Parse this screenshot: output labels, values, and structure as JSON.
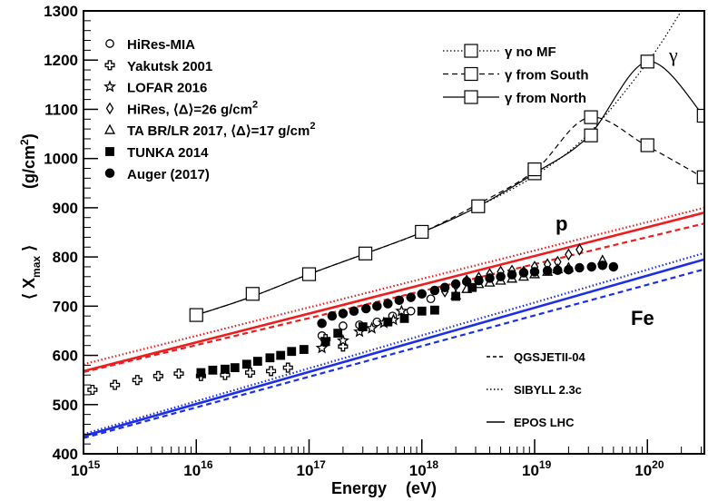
{
  "chart_data": {
    "type": "scatter",
    "xlabel": "Energy",
    "xunit": "(eV)",
    "ylabel_main": "⟨ X",
    "ylabel_sub": "max",
    "ylabel_close": " ⟩",
    "ylabel_unit": "(g/cm",
    "ylabel_unit_sup": "2",
    "ylabel_unit_close": ")",
    "xscale": "log",
    "xlim": [
      1000000000000000.0,
      3.2e+20
    ],
    "ylim": [
      400,
      1300
    ],
    "xticks": [
      {
        "value": 1000000000000000.0,
        "label": "10",
        "exp": "15"
      },
      {
        "value": 1e+16,
        "label": "10",
        "exp": "16"
      },
      {
        "value": 1e+17,
        "label": "10",
        "exp": "17"
      },
      {
        "value": 1e+18,
        "label": "10",
        "exp": "18"
      },
      {
        "value": 1e+19,
        "label": "10",
        "exp": "19"
      },
      {
        "value": 1e+20,
        "label": "10",
        "exp": "20"
      }
    ],
    "yticks": [
      400,
      500,
      600,
      700,
      800,
      900,
      1000,
      1100,
      1200,
      1300
    ],
    "region_labels": {
      "proton": "p",
      "iron": "Fe",
      "gamma": "γ"
    },
    "legend_data": [
      {
        "marker": "open-circle",
        "label": "HiRes-MIA"
      },
      {
        "marker": "open-cross",
        "label": "Yakutsk 2001"
      },
      {
        "marker": "open-star",
        "label": "LOFAR 2016"
      },
      {
        "marker": "open-diamond",
        "label": "HiRes, ⟨Δ⟩=26 g/cm",
        "sup": "2"
      },
      {
        "marker": "open-triangle",
        "label": "TA BR/LR 2017, ⟨Δ⟩=17 g/cm",
        "sup": "2"
      },
      {
        "marker": "filled-square",
        "label": "TUNKA 2014"
      },
      {
        "marker": "filled-circle",
        "label": "Auger (2017)"
      }
    ],
    "legend_gamma": [
      {
        "dash": "dotted",
        "label": "γ no MF"
      },
      {
        "dash": "dashed",
        "label": "γ from South"
      },
      {
        "dash": "solid",
        "label": "γ from North"
      }
    ],
    "legend_models": [
      {
        "dash": "dashed",
        "label": "QGSJETII-04"
      },
      {
        "dash": "dotted",
        "label": "SIBYLL 2.3c"
      },
      {
        "dash": "solid",
        "label": "EPOS LHC"
      }
    ],
    "colors": {
      "proton": "#ee1c1c",
      "iron": "#1c2ee8",
      "gamma": "#000000",
      "data": "#000000"
    },
    "series": [
      {
        "name": "HiRes-MIA",
        "marker": "open-circle",
        "points": [
          [
            1.3e+17,
            640
          ],
          [
            2e+17,
            660
          ],
          [
            2.8e+17,
            662
          ],
          [
            4e+17,
            668
          ],
          [
            5.5e+17,
            680
          ],
          [
            8e+17,
            690
          ],
          [
            1.2e+18,
            715
          ]
        ]
      },
      {
        "name": "Yakutsk 2001",
        "marker": "open-cross",
        "points": [
          [
            1200000000000000.0,
            530
          ],
          [
            1900000000000000.0,
            540
          ],
          [
            3000000000000000.0,
            550
          ],
          [
            4600000000000000.0,
            558
          ],
          [
            7000000000000000.0,
            563
          ],
          [
            1.1e+16,
            558
          ],
          [
            1.8e+16,
            560
          ],
          [
            3e+16,
            565
          ],
          [
            4.6e+16,
            568
          ],
          [
            6.5e+16,
            575
          ],
          [
            1.4e+17,
            633
          ],
          [
            2e+17,
            618
          ]
        ]
      },
      {
        "name": "LOFAR 2016",
        "marker": "open-star",
        "points": [
          [
            1.3e+17,
            615
          ],
          [
            2e+17,
            630
          ],
          [
            2.8e+17,
            648
          ],
          [
            3.6e+17,
            655
          ],
          [
            4.6e+17,
            666
          ],
          [
            5.6e+17,
            672
          ],
          [
            6.6e+17,
            690
          ]
        ]
      },
      {
        "name": "HiRes",
        "marker": "open-diamond",
        "points": [
          [
            1.6e+18,
            730
          ],
          [
            2e+18,
            742
          ],
          [
            2.5e+18,
            752
          ],
          [
            3.2e+18,
            758
          ],
          [
            4e+18,
            765
          ],
          [
            5e+18,
            770
          ],
          [
            6.3e+18,
            772
          ],
          [
            8e+18,
            770
          ],
          [
            1e+19,
            780
          ],
          [
            1.3e+19,
            785
          ],
          [
            1.6e+19,
            790
          ],
          [
            2e+19,
            805
          ],
          [
            2.5e+19,
            815
          ]
        ]
      },
      {
        "name": "TA BR/LR 2017",
        "marker": "open-triangle",
        "points": [
          [
            2e+18,
            722
          ],
          [
            2.5e+18,
            735
          ],
          [
            3.2e+18,
            745
          ],
          [
            4e+18,
            748
          ],
          [
            5e+18,
            752
          ],
          [
            6.3e+18,
            756
          ],
          [
            8e+18,
            760
          ],
          [
            1e+19,
            765
          ],
          [
            1.3e+19,
            770
          ],
          [
            1.6e+19,
            775
          ],
          [
            2e+19,
            778
          ],
          [
            4e+19,
            793
          ]
        ]
      },
      {
        "name": "TUNKA 2014",
        "marker": "filled-square",
        "points": [
          [
            1.1e+16,
            565
          ],
          [
            1.4e+16,
            570
          ],
          [
            1.8e+16,
            572
          ],
          [
            2.2e+16,
            575
          ],
          [
            2.8e+16,
            582
          ],
          [
            3.5e+16,
            588
          ],
          [
            4.5e+16,
            595
          ],
          [
            5.6e+16,
            600
          ],
          [
            7e+16,
            608
          ],
          [
            9e+16,
            612
          ],
          [
            1.4e+17,
            628
          ],
          [
            1.8e+17,
            645
          ],
          [
            3e+17,
            658
          ],
          [
            5e+17,
            668
          ],
          [
            7e+17,
            675
          ],
          [
            1e+18,
            690
          ],
          [
            1.3e+18,
            692
          ],
          [
            2e+18,
            720
          ],
          [
            2.8e+18,
            738
          ]
        ]
      },
      {
        "name": "Auger (2017)",
        "marker": "filled-circle",
        "points": [
          [
            1.3e+17,
            665
          ],
          [
            1.6e+17,
            680
          ],
          [
            2e+17,
            685
          ],
          [
            2.5e+17,
            690
          ],
          [
            3.2e+17,
            695
          ],
          [
            4e+17,
            700
          ],
          [
            5e+17,
            705
          ],
          [
            6.3e+17,
            712
          ],
          [
            8e+17,
            718
          ],
          [
            1e+18,
            725
          ],
          [
            1.3e+18,
            732
          ],
          [
            1.6e+18,
            738
          ],
          [
            2e+18,
            745
          ],
          [
            2.5e+18,
            750
          ],
          [
            3.2e+18,
            752
          ],
          [
            4e+18,
            757
          ],
          [
            5e+18,
            760
          ],
          [
            6.3e+18,
            764
          ],
          [
            8e+18,
            768
          ],
          [
            1e+19,
            770
          ],
          [
            1.3e+19,
            772
          ],
          [
            1.6e+19,
            773
          ],
          [
            2e+19,
            774
          ],
          [
            2.5e+19,
            778
          ],
          [
            3.2e+19,
            780
          ],
          [
            4e+19,
            783
          ],
          [
            5e+19,
            780
          ]
        ]
      }
    ],
    "gamma_curves": [
      {
        "name": "γ no MF",
        "dash": "dotted",
        "points": [
          [
            1e+16,
            682
          ],
          [
            3e+16,
            718
          ],
          [
            1e+17,
            765
          ],
          [
            3e+17,
            805
          ],
          [
            1e+18,
            850
          ],
          [
            3e+18,
            900
          ],
          [
            1e+19,
            965
          ],
          [
            3e+19,
            1050
          ],
          [
            1e+20,
            1195
          ],
          [
            2e+20,
            1300
          ]
        ]
      },
      {
        "name": "γ from South",
        "dash": "dashed",
        "points": [
          [
            1e+16,
            682
          ],
          [
            3e+16,
            718
          ],
          [
            1e+17,
            765
          ],
          [
            3e+17,
            805
          ],
          [
            1e+18,
            850
          ],
          [
            3e+18,
            905
          ],
          [
            1e+19,
            975
          ],
          [
            3e+19,
            1083
          ],
          [
            1e+20,
            1025
          ],
          [
            3.2e+20,
            960
          ]
        ]
      },
      {
        "name": "γ from North",
        "dash": "solid",
        "points": [
          [
            1e+16,
            682
          ],
          [
            3e+16,
            718
          ],
          [
            1e+17,
            765
          ],
          [
            3e+17,
            805
          ],
          [
            1e+18,
            850
          ],
          [
            3e+18,
            900
          ],
          [
            1e+19,
            970
          ],
          [
            3e+19,
            1045
          ],
          [
            1e+20,
            1197
          ],
          [
            3.2e+20,
            1085
          ]
        ]
      }
    ],
    "gamma_markers": [
      [
        1e+16,
        682
      ],
      [
        3.16e+16,
        725
      ],
      [
        1e+17,
        765
      ],
      [
        3.16e+17,
        807
      ],
      [
        1e+18,
        851
      ],
      [
        3.16e+18,
        903
      ],
      [
        1e+19,
        970
      ],
      [
        1e+19,
        978
      ],
      [
        3.16e+19,
        1047
      ],
      [
        3.16e+19,
        1084
      ],
      [
        1e+20,
        1197
      ],
      [
        1e+20,
        1027
      ],
      [
        3.16e+20,
        1087
      ],
      [
        3.16e+20,
        962
      ]
    ],
    "model_lines": [
      {
        "group": "proton",
        "dash": "dotted",
        "points": [
          [
            1000000000000000.0,
            582
          ],
          [
            3.2e+20,
            900
          ]
        ]
      },
      {
        "group": "proton",
        "dash": "solid",
        "points": [
          [
            1000000000000000.0,
            568
          ],
          [
            3.2e+20,
            890
          ]
        ]
      },
      {
        "group": "proton",
        "dash": "dashed",
        "points": [
          [
            1000000000000000.0,
            566
          ],
          [
            3.2e+20,
            868
          ]
        ]
      },
      {
        "group": "iron",
        "dash": "dotted",
        "points": [
          [
            1000000000000000.0,
            440
          ],
          [
            3.2e+20,
            808
          ]
        ]
      },
      {
        "group": "iron",
        "dash": "solid",
        "points": [
          [
            1000000000000000.0,
            436
          ],
          [
            3.2e+20,
            795
          ]
        ]
      },
      {
        "group": "iron",
        "dash": "dashed",
        "points": [
          [
            1000000000000000.0,
            432
          ],
          [
            3.2e+20,
            775
          ]
        ]
      }
    ]
  }
}
